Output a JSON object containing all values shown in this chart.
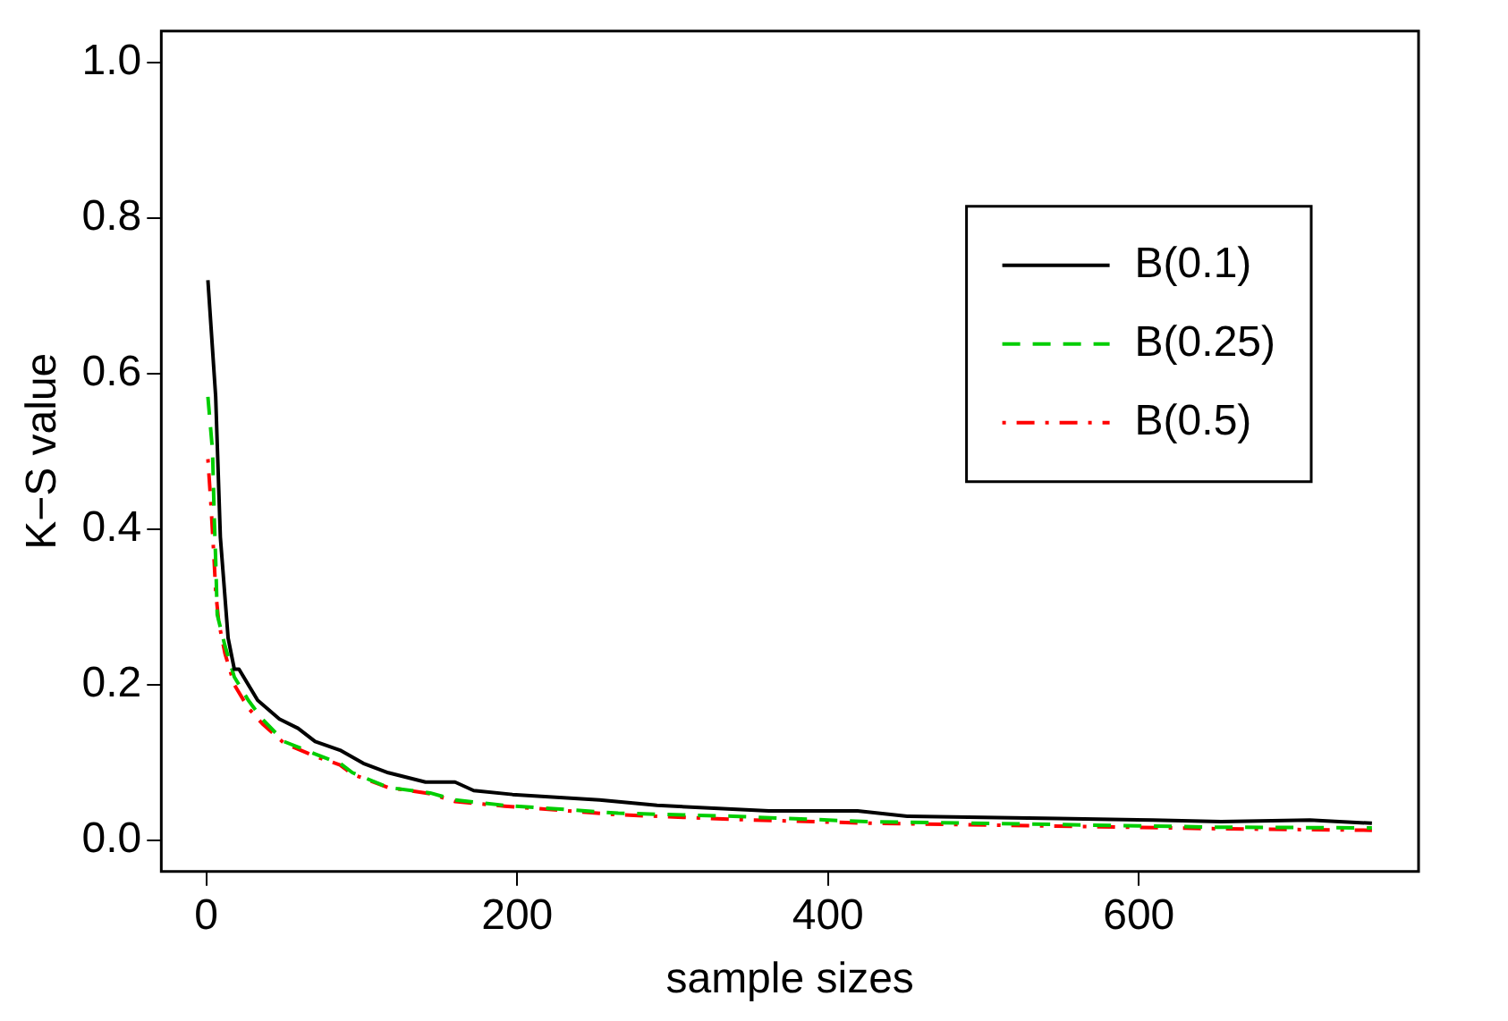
{
  "chart_data": {
    "type": "line",
    "xlabel": "sample sizes",
    "ylabel": "K−S value",
    "xlim": [
      -29,
      780
    ],
    "ylim": [
      -0.04,
      1.04
    ],
    "xticks": [
      0,
      200,
      400,
      600
    ],
    "yticks": [
      {
        "value": 0,
        "label": "0.0"
      },
      {
        "value": 0.2,
        "label": "0.2"
      },
      {
        "value": 0.4,
        "label": "0.4"
      },
      {
        "value": 0.6,
        "label": "0.6"
      },
      {
        "value": 0.8,
        "label": "0.8"
      },
      {
        "value": 1,
        "label": "1.0"
      }
    ],
    "grid": false,
    "legend": "right",
    "marker": "none",
    "series": [
      {
        "name": "B(0.1)",
        "color": "#000000",
        "line_style": "solid",
        "x": [
          1,
          6,
          9,
          14,
          18,
          21,
          33,
          47,
          59,
          70,
          86,
          101,
          117,
          141,
          160,
          172,
          197,
          253,
          290,
          362,
          419,
          451,
          548,
          609,
          653,
          710,
          750
        ],
        "values": [
          0.72,
          0.57,
          0.39,
          0.26,
          0.22,
          0.22,
          0.18,
          0.156,
          0.144,
          0.127,
          0.116,
          0.099,
          0.087,
          0.075,
          0.075,
          0.064,
          0.059,
          0.052,
          0.045,
          0.038,
          0.038,
          0.031,
          0.028,
          0.026,
          0.024,
          0.026,
          0.022
        ]
      },
      {
        "name": "B(0.25)",
        "color": "#00cd00",
        "line_style": "dashed",
        "x": [
          1,
          4,
          5,
          6,
          7,
          12,
          18,
          27,
          36,
          50,
          70,
          86,
          94,
          117,
          144,
          160,
          192,
          265,
          339,
          427,
          529,
          650,
          750
        ],
        "values": [
          0.57,
          0.5,
          0.42,
          0.36,
          0.29,
          0.25,
          0.21,
          0.18,
          0.156,
          0.127,
          0.111,
          0.099,
          0.087,
          0.068,
          0.061,
          0.052,
          0.045,
          0.035,
          0.031,
          0.024,
          0.021,
          0.017,
          0.016
        ]
      },
      {
        "name": "B(0.5)",
        "color": "#ff0000",
        "line_style": "dashdot",
        "x": [
          1,
          3,
          5,
          6,
          8,
          12,
          18,
          27,
          36,
          50,
          70,
          86,
          94,
          117,
          144,
          160,
          192,
          265,
          339,
          427,
          529,
          650,
          750
        ],
        "values": [
          0.49,
          0.43,
          0.36,
          0.32,
          0.28,
          0.24,
          0.2,
          0.17,
          0.15,
          0.125,
          0.108,
          0.097,
          0.085,
          0.068,
          0.06,
          0.05,
          0.044,
          0.033,
          0.027,
          0.022,
          0.019,
          0.015,
          0.013
        ]
      }
    ]
  }
}
